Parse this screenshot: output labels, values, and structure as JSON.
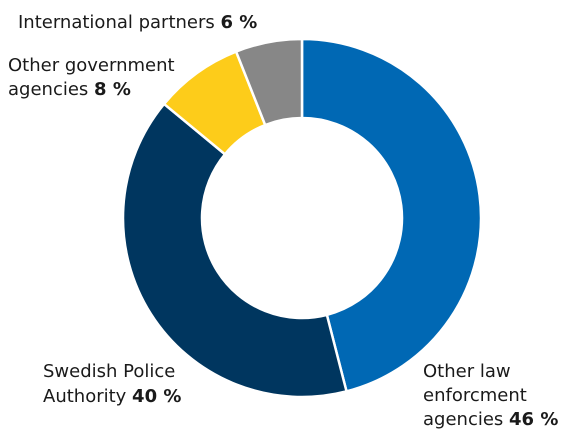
{
  "chart_data": {
    "type": "pie",
    "donut": true,
    "slices": [
      {
        "line1": "Other law",
        "line2": "enforcment",
        "line3": "agencies",
        "value": 46,
        "value_label": "46 %",
        "color": "#0068B4"
      },
      {
        "line1": "Swedish Police",
        "line2": "Authority",
        "value": 40,
        "value_label": "40 %",
        "color": "#00365F"
      },
      {
        "line1": "Other government",
        "line2": "agencies",
        "value": 8,
        "value_label": "8 %",
        "color": "#FDCC1A"
      },
      {
        "line1": "International partners",
        "value": 6,
        "value_label": "6 %",
        "color": "#878787"
      }
    ]
  }
}
